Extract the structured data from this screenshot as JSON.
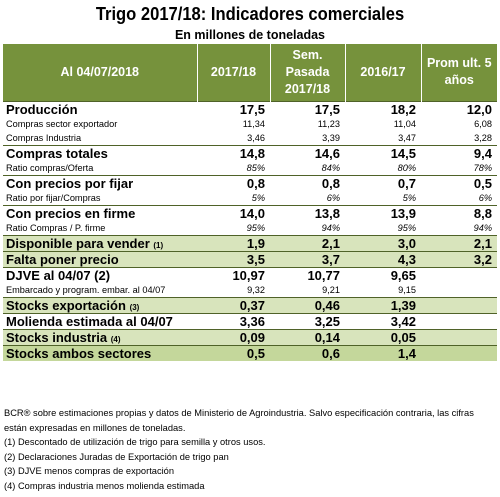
{
  "title": "Trigo 2017/18: Indicadores comerciales",
  "subtitle": "En millones de toneladas",
  "columns": [
    "Al 04/07/2018",
    "2017/18",
    "Sem.\nPasada\n2017/18",
    "2016/17",
    "Prom ult. 5\naños"
  ],
  "rows": [
    {
      "label": "Producción",
      "values": [
        "17,5",
        "17,5",
        "18,2",
        "12,0"
      ],
      "kind": "main",
      "sep": true
    },
    {
      "label": "Compras sector exportador",
      "values": [
        "11,34",
        "11,23",
        "11,04",
        "6,08"
      ],
      "kind": "sub"
    },
    {
      "label": "Compras Industria",
      "values": [
        "3,46",
        "3,39",
        "3,47",
        "3,28"
      ],
      "kind": "sub"
    },
    {
      "label": "Compras totales",
      "values": [
        "14,8",
        "14,6",
        "14,5",
        "9,4"
      ],
      "kind": "main",
      "sep": true
    },
    {
      "label": "Ratio compras/Oferta",
      "values": [
        "85%",
        "84%",
        "80%",
        "78%"
      ],
      "kind": "sub-it"
    },
    {
      "label": "Con precios por fijar",
      "values": [
        "0,8",
        "0,8",
        "0,7",
        "0,5"
      ],
      "kind": "main",
      "sep": true
    },
    {
      "label": "Ratio por fijar/Compras",
      "values": [
        "5%",
        "6%",
        "5%",
        "6%"
      ],
      "kind": "sub-it"
    },
    {
      "label": "Con precios en firme",
      "values": [
        "14,0",
        "13,8",
        "13,9",
        "8,8"
      ],
      "kind": "main",
      "sep": true
    },
    {
      "label": "Ratio Compras / P. firme",
      "values": [
        "95%",
        "94%",
        "95%",
        "94%"
      ],
      "kind": "sub-it"
    },
    {
      "label": "Disponible para vender",
      "note": "(1)",
      "values": [
        "1,9",
        "2,1",
        "3,0",
        "2,1"
      ],
      "kind": "main",
      "bg": "green",
      "sep": true
    },
    {
      "label": "Falta poner precio",
      "values": [
        "3,5",
        "3,7",
        "4,3",
        "3,2"
      ],
      "kind": "main",
      "bg": "green",
      "sep": true
    },
    {
      "label": "DJVE al 04/07 (2)",
      "values": [
        "10,97",
        "10,77",
        "9,65",
        ""
      ],
      "kind": "main",
      "sep": true
    },
    {
      "label": "Embarcado y program. embar. al 04/07",
      "values": [
        "9,32",
        "9,21",
        "9,15",
        ""
      ],
      "kind": "sub"
    },
    {
      "label": "Stocks exportación",
      "note": "(3)",
      "values": [
        "0,37",
        "0,46",
        "1,39",
        ""
      ],
      "kind": "main",
      "bg": "green",
      "sep": true
    },
    {
      "label": "Molienda estimada al 04/07",
      "values": [
        "3,36",
        "3,25",
        "3,42",
        ""
      ],
      "kind": "main",
      "sep": true
    },
    {
      "label": "Stocks industria",
      "note": "(4)",
      "values": [
        "0,09",
        "0,14",
        "0,05",
        ""
      ],
      "kind": "main",
      "bg": "green",
      "sep": true
    },
    {
      "label": "Stocks ambos sectores",
      "values": [
        "0,5",
        "0,6",
        "1,4",
        ""
      ],
      "kind": "main",
      "bg": "dark",
      "sep": true
    }
  ],
  "notes": [
    "BCR® sobre estimaciones propias y datos de Ministerio de Agroindustria. Salvo especificación contraria, las cifras están expresadas en millones de toneladas.",
    "(1) Descontado de utilización de trigo para semilla y otros usos.",
    "(2) Declaraciones Juradas de Exportación de trigo pan",
    "(3) DJVE menos compras de exportación",
    "(4) Compras industria menos molienda estimada"
  ]
}
